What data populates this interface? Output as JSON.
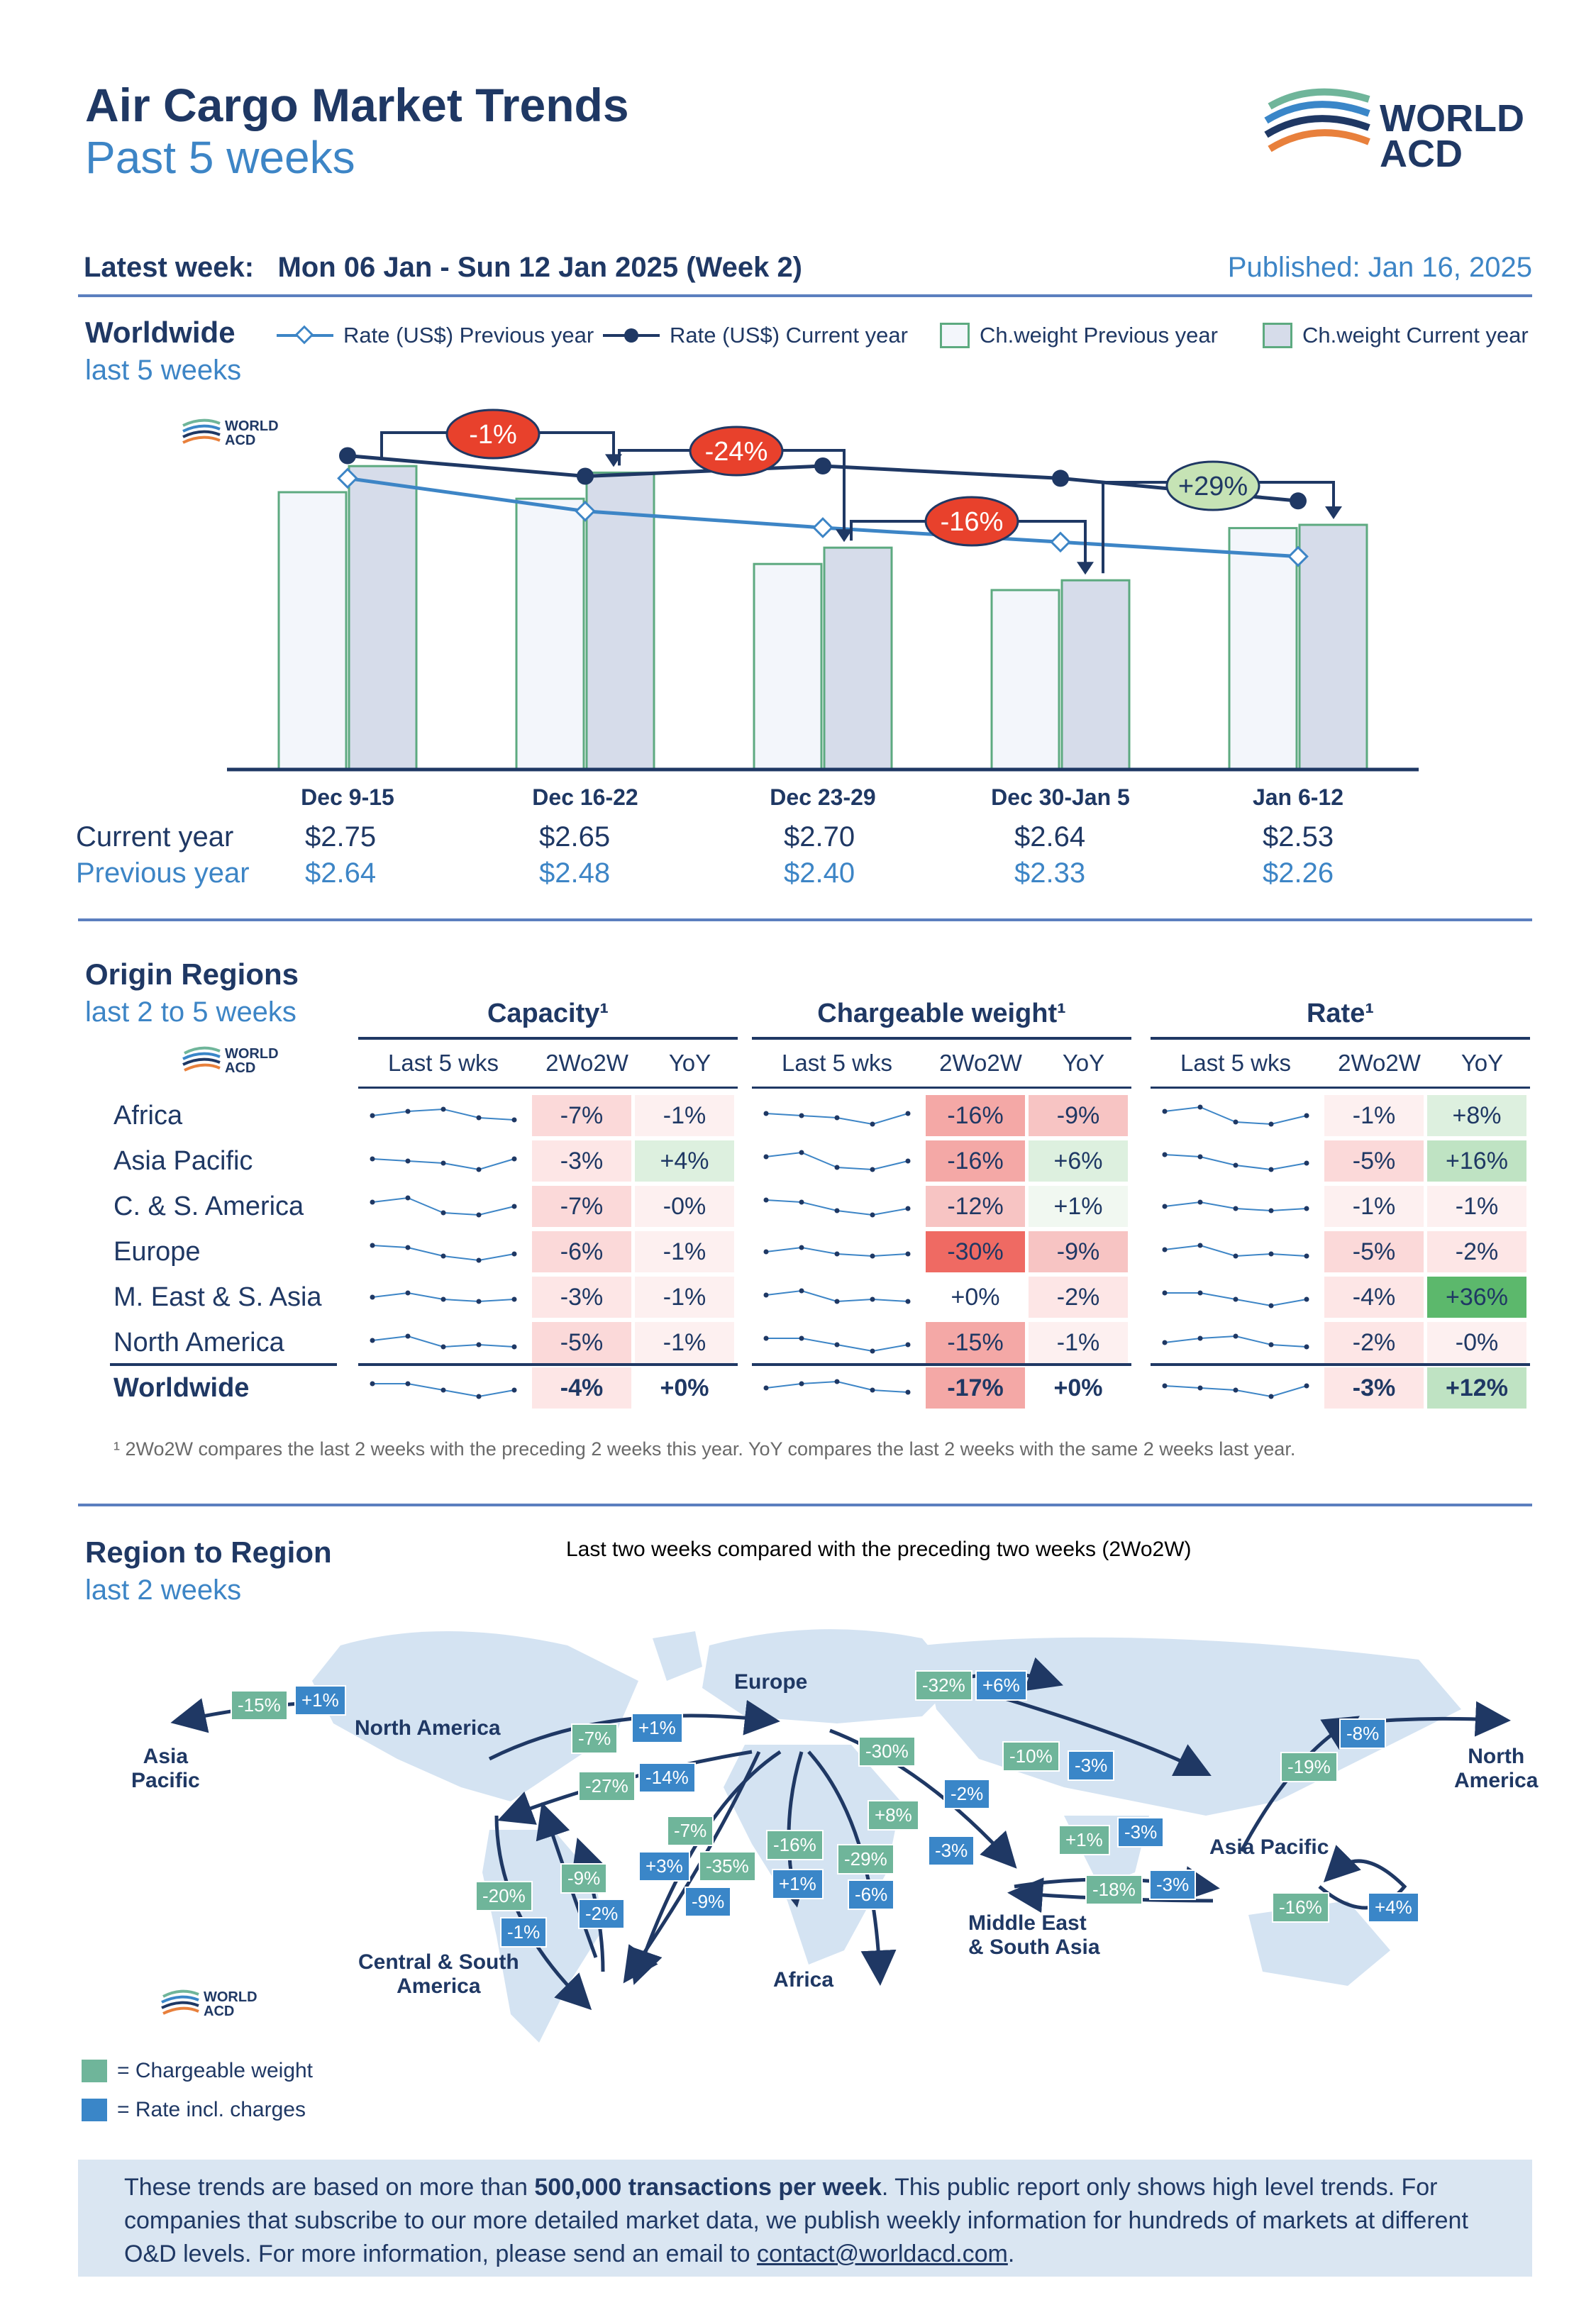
{
  "header": {
    "title": "Air Cargo Market Trends",
    "subtitle": "Past 5 weeks",
    "logo_text_1": "WORLD",
    "logo_text_2": "ACD",
    "latest_week_label": "Latest week:",
    "latest_week_value": "Mon 06 Jan - Sun 12 Jan 2025 (Week 2)",
    "published": "Published: Jan 16, 2025"
  },
  "worldwide": {
    "title": "Worldwide",
    "subtitle": "last 5 weeks",
    "legend": {
      "rate_prev": "Rate (US$) Previous year",
      "rate_cur": "Rate (US$) Current year",
      "cw_prev": "Ch.weight Previous year",
      "cw_cur": "Ch.weight Current year"
    },
    "row_current": "Current year",
    "row_previous": "Previous year",
    "current_values": [
      "$2.75",
      "$2.65",
      "$2.70",
      "$2.64",
      "$2.53"
    ],
    "previous_values": [
      "$2.64",
      "$2.48",
      "$2.40",
      "$2.33",
      "$2.26"
    ],
    "changes": [
      "-1%",
      "-24%",
      "-16%",
      "+29%"
    ],
    "colors": {
      "neg": "#e8412c",
      "pos": "#c6e3b5",
      "navy": "#1f3864",
      "light": "#3d85c6",
      "barborder": "#5daa80"
    }
  },
  "chart_data": {
    "type": "bar",
    "categories": [
      "Dec 9-15",
      "Dec 16-22",
      "Dec 23-29",
      "Dec 30-Jan 5",
      "Jan 6-12"
    ],
    "series": [
      {
        "name": "Ch.weight Previous year",
        "values": [
          85,
          83,
          63,
          55,
          74
        ]
      },
      {
        "name": "Ch.weight Current year",
        "values": [
          93,
          91,
          68,
          58,
          75
        ]
      },
      {
        "name": "Rate (US$) Current year",
        "values": [
          2.75,
          2.65,
          2.7,
          2.64,
          2.53
        ]
      },
      {
        "name": "Rate (US$) Previous year",
        "values": [
          2.64,
          2.48,
          2.4,
          2.33,
          2.26
        ]
      }
    ]
  },
  "origin": {
    "title": "Origin Regions",
    "subtitle": "last 2 to 5 weeks",
    "groups": [
      "Capacity¹",
      "Chargeable weight¹",
      "Rate¹"
    ],
    "cols": [
      "Last 5 wks",
      "2Wo2W",
      "YoY"
    ],
    "regions": [
      "Africa",
      "Asia Pacific",
      "C. & S. America",
      "Europe",
      "M. East & S. Asia",
      "North America",
      "Worldwide"
    ],
    "capacity": [
      [
        "-7%",
        "-1%"
      ],
      [
        "-3%",
        "+4%"
      ],
      [
        "-7%",
        "-0%"
      ],
      [
        "-6%",
        "-1%"
      ],
      [
        "-3%",
        "-1%"
      ],
      [
        "-5%",
        "-1%"
      ],
      [
        "-4%",
        "+0%"
      ]
    ],
    "chargeable": [
      [
        "-16%",
        "-9%"
      ],
      [
        "-16%",
        "+6%"
      ],
      [
        "-12%",
        "+1%"
      ],
      [
        "-30%",
        "-9%"
      ],
      [
        "+0%",
        "-2%"
      ],
      [
        "-15%",
        "-1%"
      ],
      [
        "-17%",
        "+0%"
      ]
    ],
    "rate": [
      [
        "-1%",
        "+8%"
      ],
      [
        "-5%",
        "+16%"
      ],
      [
        "-1%",
        "-1%"
      ],
      [
        "-5%",
        "-2%"
      ],
      [
        "-4%",
        "+36%"
      ],
      [
        "-2%",
        "-0%"
      ],
      [
        "-3%",
        "+12%"
      ]
    ],
    "footnote": "¹ 2Wo2W compares the last 2 weeks with the preceding 2 weeks this year. YoY compares the last 2 weeks with the same 2 weeks last year."
  },
  "region_to_region": {
    "title": "Region to Region",
    "subtitle": "last 2 weeks",
    "caption": "Last two weeks compared with the preceding two weeks (2Wo2W)",
    "labels": {
      "asia_pacific_left": "Asia\nPacific",
      "north_america_mid": "North America",
      "europe": "Europe",
      "north_america_right": "North\nAmerica",
      "asia_pacific_right": "Asia Pacific",
      "csa": "Central & South\nAmerica",
      "africa": "Africa",
      "mesa": "Middle East\n& South Asia"
    },
    "tags": [
      "-15%",
      "+1%",
      "-7%",
      "+1%",
      "-27%",
      "-14%",
      "-32%",
      "+6%",
      "-10%",
      "-3%",
      "-30%",
      "-2%",
      "+8%",
      "-3%",
      "-7%",
      "+3%",
      "-35%",
      "-9%",
      "-16%",
      "+1%",
      "-29%",
      "-6%",
      "+1%",
      "-3%",
      "-18%",
      "-3%",
      "-19%",
      "-8%",
      "-16%",
      "+4%",
      "-20%",
      "-1%",
      "-9%",
      "-2%"
    ],
    "legend_cw": "= Chargeable weight",
    "legend_rate": "= Rate incl. charges"
  },
  "info": {
    "text1": "These trends are based on more than ",
    "bold": "500,000 transactions per week",
    "text2": ". This public report only shows high level trends. For companies that subscribe to our more detailed market data, we publish weekly information for hundreds of markets at different O&D levels. For more information, please send an email to ",
    "email": "contact@worldacd.com",
    "text3": "."
  }
}
